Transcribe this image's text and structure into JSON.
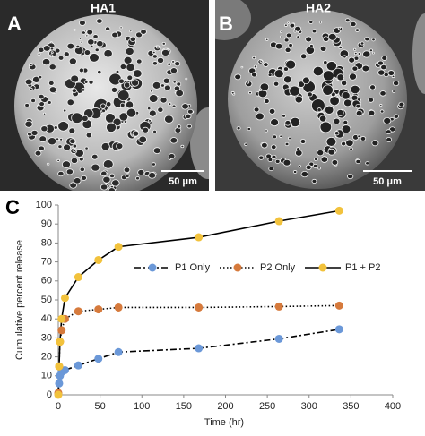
{
  "panels": [
    {
      "label": "A",
      "title": "HA1",
      "scale": "50 μm"
    },
    {
      "label": "B",
      "title": "HA2",
      "scale": "50 μm"
    }
  ],
  "chart_data": {
    "type": "line",
    "panel_label": "C",
    "x_label": "Time (hr)",
    "y_label": "Cumulative percent release",
    "x": [
      0,
      1,
      2,
      4,
      8,
      24,
      48,
      72,
      168,
      264,
      336
    ],
    "series": [
      {
        "name": "P1 Only",
        "color": "#6b98d8",
        "linestyle": "dashdot",
        "values": [
          0.5,
          6,
          10,
          12,
          13,
          15.5,
          19,
          22.5,
          24.5,
          29.5,
          34.5
        ]
      },
      {
        "name": "P2 Only",
        "color": "#d67a3c",
        "linestyle": "dotted",
        "values": [
          1,
          15,
          28,
          34,
          40,
          44,
          45,
          46,
          46,
          46.5,
          47
        ]
      },
      {
        "name": "P1 + P2",
        "color": "#f2c23c",
        "linestyle": "solid",
        "values": [
          0,
          15,
          28,
          40,
          51,
          62,
          71,
          78,
          83,
          91.5,
          97
        ]
      }
    ],
    "xlim": [
      0,
      400
    ],
    "xticks": [
      0,
      50,
      100,
      150,
      200,
      250,
      300,
      350,
      400
    ],
    "ylim": [
      0,
      100
    ],
    "yticks": [
      0,
      10,
      20,
      30,
      40,
      50,
      60,
      70,
      80,
      90,
      100
    ],
    "grid": false,
    "legend": "top"
  }
}
